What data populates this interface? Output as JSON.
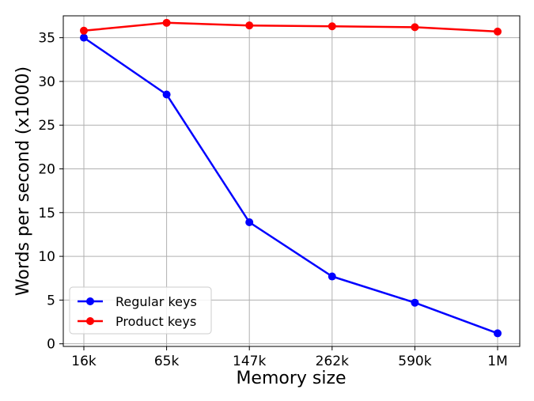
{
  "chart_data": {
    "type": "line",
    "categories": [
      "16k",
      "65k",
      "147k",
      "262k",
      "590k",
      "1M"
    ],
    "xlabel": "Memory size",
    "ylabel": "Words per second (x1000)",
    "ylim": [
      -0.3,
      37.5
    ],
    "yticks": [
      0,
      5,
      10,
      15,
      20,
      25,
      30,
      35
    ],
    "grid": true,
    "legend_position": "lower-left",
    "series": [
      {
        "name": "Regular keys",
        "color": "#0000ff",
        "values": [
          35.0,
          28.5,
          13.9,
          7.7,
          4.7,
          1.2
        ]
      },
      {
        "name": "Product keys",
        "color": "#ff0000",
        "values": [
          35.8,
          36.7,
          36.4,
          36.3,
          36.2,
          35.7
        ]
      }
    ]
  }
}
